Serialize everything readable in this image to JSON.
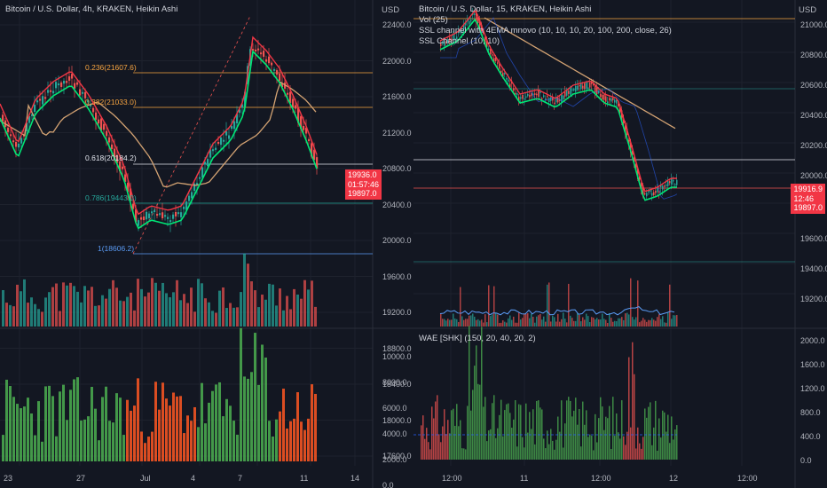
{
  "left": {
    "legend": [
      "Bitcoin / U.S. Dollar, 4h, KRAKEN, Heikin Ashi"
    ],
    "currency": "USD",
    "price_axis": [
      "22400.0",
      "22000.0",
      "21600.0",
      "21200.0",
      "20800.0",
      "20400.0",
      "20000.0",
      "19600.0",
      "19200.0",
      "18800.0",
      "18400.0",
      "18000.0",
      "17600.0"
    ],
    "osc_axis": [
      "10000.0",
      "8000.0",
      "6000.0",
      "4000.0",
      "2000.0",
      "0.0"
    ],
    "time_axis": [
      "23",
      "27",
      "Jul",
      "4",
      "7",
      "11",
      "14"
    ],
    "price_tag": [
      "19936.0",
      "01:57:46",
      "19897.0"
    ],
    "fib": [
      {
        "label": "0.236(21607.6)",
        "color": "#f7a440"
      },
      {
        "label": "0.382(21033.0)",
        "color": "#f7a440"
      },
      {
        "label": "0.618(20184.2)",
        "color": "#e0e3eb"
      },
      {
        "label": "0.786(19443.0)",
        "color": "#26a69a"
      },
      {
        "label": "1(18606.2)",
        "color": "#5b9cf6"
      }
    ]
  },
  "right": {
    "legend": [
      "Bitcoin / U.S. Dollar, 15, KRAKEN, Heikin Ashi",
      "Vol (25)",
      "SSL channel with 4EMA mnovo (10, 10, 10, 20, 100, 200, close, 26)",
      "SSL Channel (10, 10)"
    ],
    "wae_label": "WAE [SHK] (150, 20, 40, 20, 2)",
    "currency": "USD",
    "price_axis": [
      "21000.0",
      "20800.0",
      "20600.0",
      "20400.0",
      "20200.0",
      "20000.0",
      "19600.0",
      "19400.0",
      "19200.0"
    ],
    "osc_axis": [
      "2000.0",
      "1600.0",
      "1200.0",
      "800.0",
      "400.0",
      "0.0"
    ],
    "time_axis": [
      "12:00",
      "11",
      "12:00",
      "12",
      "12:00"
    ],
    "price_tag": [
      "19916.9",
      "12:46",
      "19897.0"
    ]
  },
  "colors": {
    "bg": "#131722",
    "up": "#26a69a",
    "down": "#ef5350",
    "green_line": "#00e676",
    "red_line": "#f23645",
    "ema": "#d4a373",
    "grid": "#1e222d"
  }
}
